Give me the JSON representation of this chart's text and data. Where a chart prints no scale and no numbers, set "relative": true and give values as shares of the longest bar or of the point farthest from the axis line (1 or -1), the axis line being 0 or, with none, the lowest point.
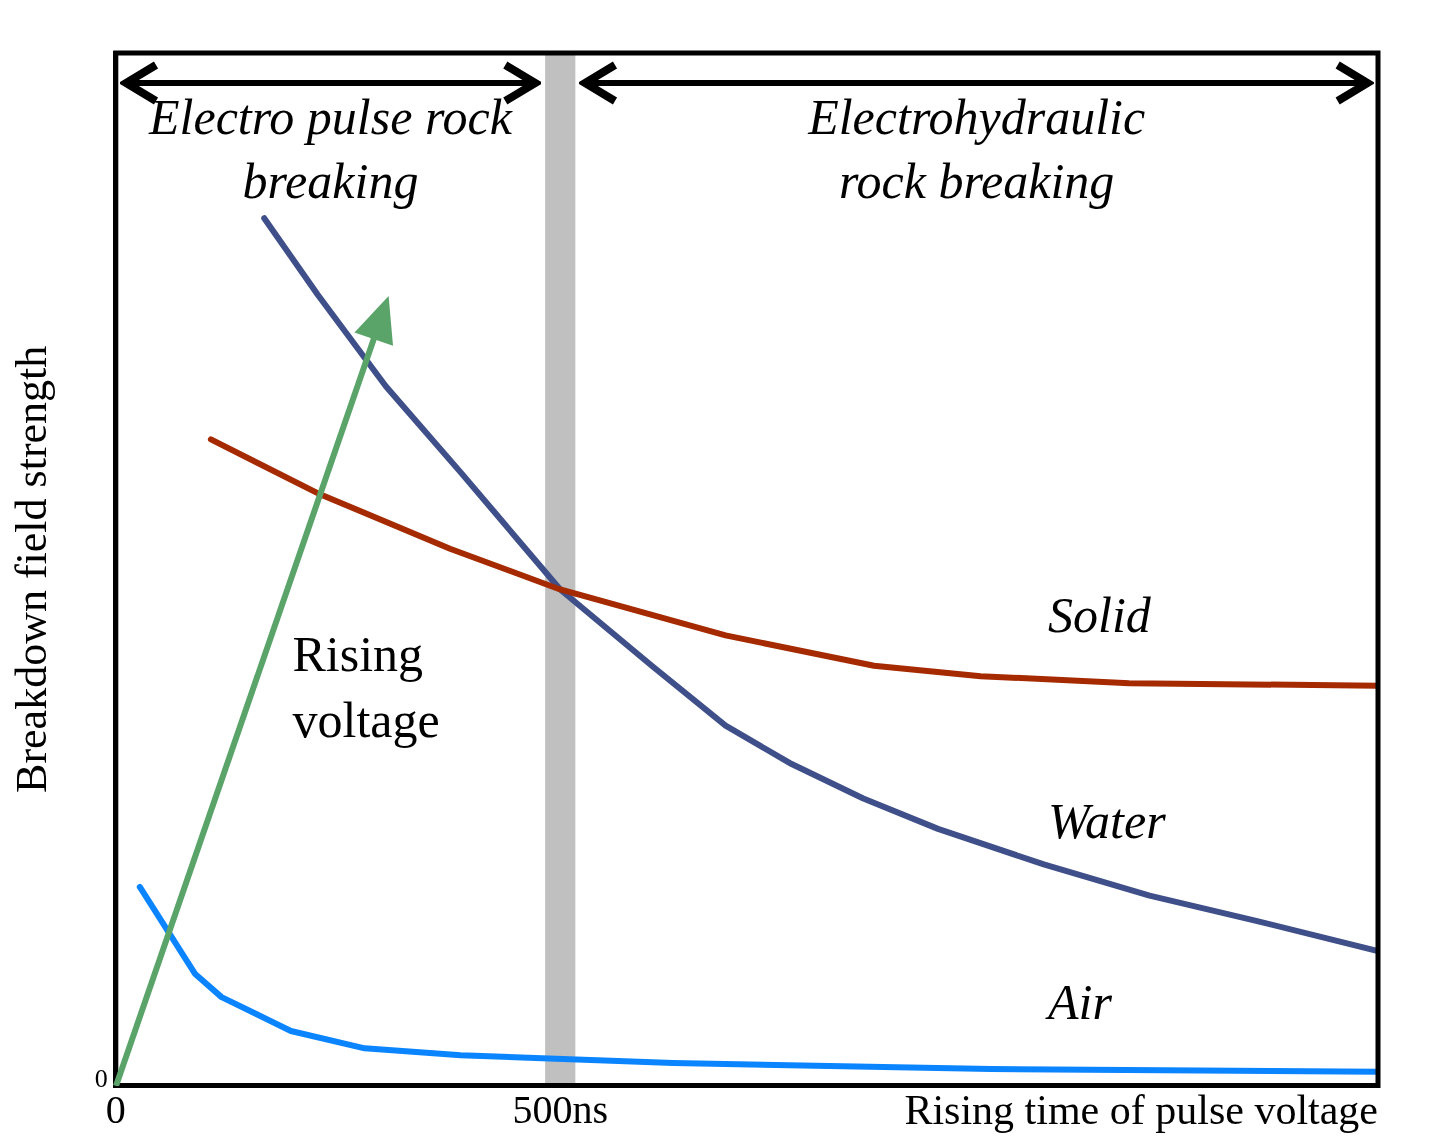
{
  "chart_data": {
    "type": "line",
    "relative": true,
    "xlabel": "Rising time of pulse voltage",
    "ylabel": "Breakdown field strength",
    "xlim": [
      0,
      1420
    ],
    "xticks": [
      {
        "value": 0,
        "label": "0"
      },
      {
        "value": 500,
        "label": "500ns"
      }
    ],
    "tick_labels": "x",
    "grid": false,
    "legend": false,
    "marker": "none",
    "line_style": "solid",
    "bands": [
      {
        "axis": "x",
        "from": 483,
        "to": 517,
        "color": "#c0c0c0"
      }
    ],
    "annotations": [
      "Electro pulse rock breaking",
      "Electrohydraulic rock breaking",
      "Rising voltage",
      "0"
    ],
    "series": [
      {
        "name": "Solid",
        "color": "#a52a00",
        "x": [
          107,
          227,
          376,
          500,
          686,
          853,
          973,
          1140,
          1420
        ],
        "values": [
          0.745,
          0.683,
          0.619,
          0.572,
          0.519,
          0.484,
          0.472,
          0.464,
          0.461
        ]
      },
      {
        "name": "Water",
        "color": "#3f4f8a",
        "x": [
          167,
          227,
          304,
          388,
          500,
          603,
          686,
          758,
          841,
          925,
          1044,
          1163,
          1283,
          1420
        ],
        "values": [
          1.0,
          0.912,
          0.806,
          0.707,
          0.572,
          0.484,
          0.415,
          0.372,
          0.331,
          0.296,
          0.255,
          0.219,
          0.19,
          0.155
        ]
      },
      {
        "name": "Air",
        "color": "#0a84ff",
        "x": [
          27,
          89,
          119,
          197,
          280,
          388,
          627,
          985,
          1420
        ],
        "values": [
          0.229,
          0.129,
          0.102,
          0.063,
          0.043,
          0.035,
          0.026,
          0.019,
          0.016
        ]
      }
    ]
  }
}
